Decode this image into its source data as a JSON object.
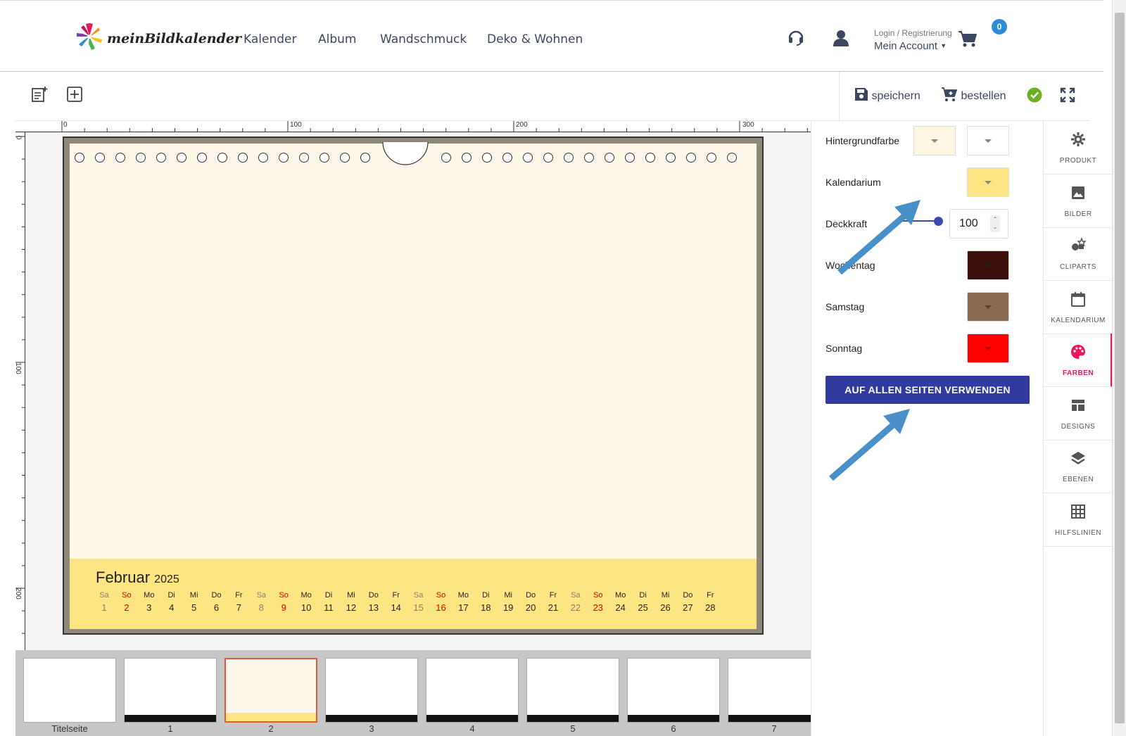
{
  "header": {
    "logo_text": "meinBildkalender",
    "nav": [
      "Kalender",
      "Album",
      "Wandschmuck",
      "Deko & Wohnen"
    ],
    "account_small": "Login / Registrierung",
    "account_big": "Mein Account",
    "cart_count": "0"
  },
  "toolbar": {
    "save_label": "speichern",
    "order_label": "bestellen"
  },
  "rulers": {
    "top": [
      "0",
      "100",
      "200",
      "300"
    ],
    "left": [
      "0",
      "100",
      "200"
    ]
  },
  "calendar": {
    "month": "Februar",
    "year": "2025",
    "days": [
      {
        "name": "Sa",
        "num": "1",
        "type": "sat"
      },
      {
        "name": "So",
        "num": "2",
        "type": "sun"
      },
      {
        "name": "Mo",
        "num": "3",
        "type": "wd"
      },
      {
        "name": "Di",
        "num": "4",
        "type": "wd"
      },
      {
        "name": "Mi",
        "num": "5",
        "type": "wd"
      },
      {
        "name": "Do",
        "num": "6",
        "type": "wd"
      },
      {
        "name": "Fr",
        "num": "7",
        "type": "wd"
      },
      {
        "name": "Sa",
        "num": "8",
        "type": "sat"
      },
      {
        "name": "So",
        "num": "9",
        "type": "sun"
      },
      {
        "name": "Mo",
        "num": "10",
        "type": "wd"
      },
      {
        "name": "Di",
        "num": "11",
        "type": "wd"
      },
      {
        "name": "Mi",
        "num": "12",
        "type": "wd"
      },
      {
        "name": "Do",
        "num": "13",
        "type": "wd"
      },
      {
        "name": "Fr",
        "num": "14",
        "type": "wd"
      },
      {
        "name": "Sa",
        "num": "15",
        "type": "sat"
      },
      {
        "name": "So",
        "num": "16",
        "type": "sun"
      },
      {
        "name": "Mo",
        "num": "17",
        "type": "wd"
      },
      {
        "name": "Di",
        "num": "18",
        "type": "wd"
      },
      {
        "name": "Mi",
        "num": "19",
        "type": "wd"
      },
      {
        "name": "Do",
        "num": "20",
        "type": "wd"
      },
      {
        "name": "Fr",
        "num": "21",
        "type": "wd"
      },
      {
        "name": "Sa",
        "num": "22",
        "type": "sat"
      },
      {
        "name": "So",
        "num": "23",
        "type": "sun"
      },
      {
        "name": "Mo",
        "num": "24",
        "type": "wd"
      },
      {
        "name": "Di",
        "num": "25",
        "type": "wd"
      },
      {
        "name": "Mi",
        "num": "26",
        "type": "wd"
      },
      {
        "name": "Do",
        "num": "27",
        "type": "wd"
      },
      {
        "name": "Fr",
        "num": "28",
        "type": "wd"
      }
    ]
  },
  "thumbnails": [
    "Titelseite",
    "1",
    "2",
    "3",
    "4",
    "5",
    "6",
    "7"
  ],
  "selected_thumbnail": "2",
  "panel": {
    "hintergrundfarbe": "Hintergrundfarbe",
    "kalendarium": "Kalendarium",
    "deckkraft": "Deckkraft",
    "deckkraft_value": "100",
    "wochentag": "Wochentag",
    "samstag": "Samstag",
    "sonntag": "Sonntag",
    "apply_label": "AUF ALLEN SEITEN VERWENDEN"
  },
  "colors": {
    "hintergrund_1": "#fdf6e3",
    "hintergrund_2": "#ffffff",
    "kalendarium": "#fde584",
    "wochentag": "#3a0f0c",
    "samstag": "#8b6a52",
    "sonntag": "#ff0000",
    "accent": "#313a9e",
    "active_tab": "#e8175d",
    "arrow": "#4a90c8"
  },
  "tabs": [
    {
      "label": "PRODUKT",
      "icon": "gear-icon"
    },
    {
      "label": "BILDER",
      "icon": "image-icon"
    },
    {
      "label": "CLIPARTS",
      "icon": "cliparts-icon"
    },
    {
      "label": "KALENDARIUM",
      "icon": "calendar-icon"
    },
    {
      "label": "FARBEN",
      "icon": "palette-icon"
    },
    {
      "label": "DESIGNS",
      "icon": "designs-icon"
    },
    {
      "label": "EBENEN",
      "icon": "layers-icon"
    },
    {
      "label": "HILFSLINIEN",
      "icon": "grid-icon"
    }
  ],
  "active_tab": "FARBEN"
}
